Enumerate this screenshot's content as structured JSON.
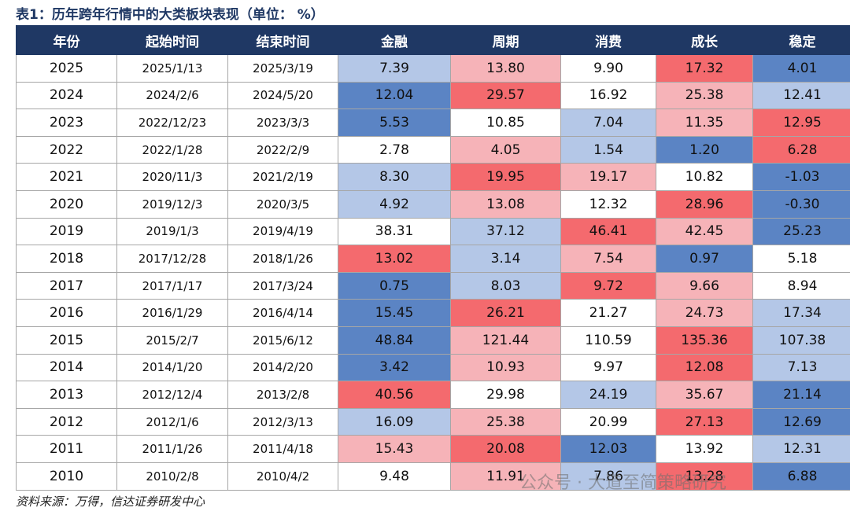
{
  "title": "表1：历年跨年行情中的大类板块表现（单位： %）",
  "table": {
    "header": [
      "年份",
      "起始时间",
      "结束时间",
      "金融",
      "周期",
      "消费",
      "成长",
      "稳定"
    ],
    "rows": [
      [
        "2025",
        "2025/1/13",
        "2025/3/19",
        "7.39",
        "13.80",
        "9.90",
        "17.32",
        "4.01"
      ],
      [
        "2024",
        "2024/2/6",
        "2024/5/20",
        "12.04",
        "29.57",
        "16.92",
        "25.38",
        "12.41"
      ],
      [
        "2023",
        "2022/12/23",
        "2023/3/3",
        "5.53",
        "10.85",
        "7.04",
        "11.35",
        "12.95"
      ],
      [
        "2022",
        "2022/1/28",
        "2022/2/9",
        "2.78",
        "4.05",
        "1.54",
        "1.20",
        "6.28"
      ],
      [
        "2021",
        "2020/11/3",
        "2021/2/19",
        "8.30",
        "19.95",
        "19.17",
        "10.82",
        "-1.03"
      ],
      [
        "2020",
        "2019/12/3",
        "2020/3/5",
        "4.92",
        "13.08",
        "12.32",
        "28.96",
        "-0.30"
      ],
      [
        "2019",
        "2019/1/3",
        "2019/4/19",
        "38.31",
        "37.12",
        "46.41",
        "42.45",
        "25.23"
      ],
      [
        "2018",
        "2017/12/28",
        "2018/1/26",
        "13.02",
        "3.14",
        "7.54",
        "0.97",
        "5.18"
      ],
      [
        "2017",
        "2017/1/17",
        "2017/3/24",
        "0.75",
        "8.03",
        "9.72",
        "9.66",
        "8.94"
      ],
      [
        "2016",
        "2016/1/29",
        "2016/4/14",
        "15.45",
        "26.21",
        "21.27",
        "24.73",
        "17.34"
      ],
      [
        "2015",
        "2015/2/7",
        "2015/6/12",
        "48.84",
        "121.44",
        "110.59",
        "135.36",
        "107.38"
      ],
      [
        "2014",
        "2014/1/20",
        "2014/2/20",
        "3.42",
        "10.93",
        "9.97",
        "12.08",
        "7.13"
      ],
      [
        "2013",
        "2012/12/4",
        "2013/2/8",
        "40.56",
        "29.98",
        "24.19",
        "35.67",
        "21.14"
      ],
      [
        "2012",
        "2012/1/6",
        "2012/3/13",
        "16.09",
        "25.38",
        "20.99",
        "27.13",
        "12.69"
      ],
      [
        "2011",
        "2011/1/26",
        "2011/4/18",
        "15.43",
        "20.08",
        "12.03",
        "13.92",
        "12.31"
      ],
      [
        "2010",
        "2010/2/8",
        "2010/4/2",
        "9.48",
        "11.91",
        "7.86",
        "13.28",
        "6.88"
      ]
    ]
  },
  "source": "资料来源：万得，信达证券研发中心",
  "watermark": "公众号 · 大道至简策略研究"
}
